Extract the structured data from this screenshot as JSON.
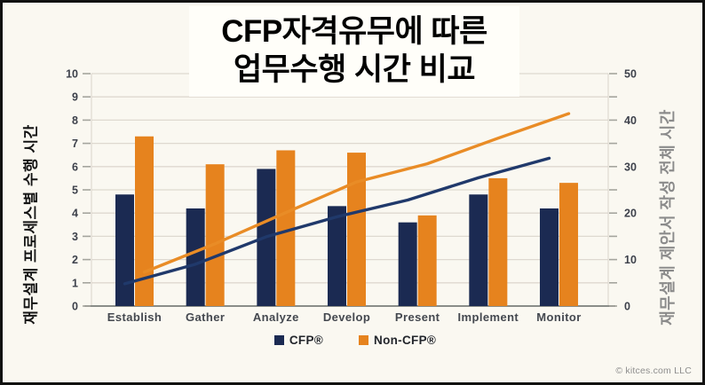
{
  "title": {
    "line1": "CFP자격유무에 따른",
    "line2": "업무수행 시간 비교"
  },
  "legend": {
    "items": [
      {
        "label": "CFP®",
        "color": "#1b2a52"
      },
      {
        "label": "Non-CFP®",
        "color": "#e6831e"
      }
    ]
  },
  "footer": {
    "copyright": "© kitces.com LLC"
  },
  "colors": {
    "cfp_navy": "#1b2a52",
    "non_cfp_orange": "#e6831e",
    "cfp_line_navy": "#20396b",
    "non_cfp_line_orange": "#e98c26",
    "background": "#faf8f1",
    "title_box": "#fffef9",
    "gridline": "#ded9d0",
    "axis_line": "#8a8d89",
    "tick": "#a5a59e",
    "axis_text": "#3d414b",
    "x_label_text": "#44484f",
    "right_axis_title": "#8b8b8b",
    "title_text": "#000000",
    "copyright": "#8e8e8e",
    "frame_border": "#111111"
  },
  "chart_data": {
    "type": "bar+line",
    "title": "CFP자격유무에 따른 업무수행 시간 비교",
    "categories": [
      "Establish",
      "Gather",
      "Analyze",
      "Develop",
      "Present",
      "Implement",
      "Monitor"
    ],
    "left_axis": {
      "title": "재무설계 프로세스별 수행 시간",
      "min": 0,
      "max": 10,
      "tick_labels": [
        0,
        1,
        2,
        3,
        4,
        5,
        6,
        7,
        8,
        9,
        10
      ],
      "applies_to": "bars"
    },
    "right_axis": {
      "title": "재무설계 제안서 작성 전체 시간",
      "min": 0,
      "max": 50,
      "tick_labels": [
        0,
        10,
        20,
        30,
        40,
        50
      ],
      "minor_tick_step": 5,
      "applies_to": "lines"
    },
    "bar_series": [
      {
        "name": "CFP®",
        "color": "#1b2a52",
        "values": [
          4.8,
          4.2,
          5.9,
          4.3,
          3.6,
          4.8,
          4.2
        ]
      },
      {
        "name": "Non-CFP®",
        "color": "#e6831e",
        "values": [
          7.3,
          6.1,
          6.7,
          6.6,
          3.9,
          5.5,
          5.3
        ]
      }
    ],
    "line_series": [
      {
        "name": "CFP® cumulative total",
        "color": "#20396b",
        "values": [
          4.8,
          9.0,
          14.9,
          19.2,
          22.8,
          27.6,
          31.8
        ]
      },
      {
        "name": "Non-CFP® cumulative total",
        "color": "#e98c26",
        "values": [
          7.3,
          13.4,
          20.1,
          26.7,
          30.6,
          36.1,
          41.4
        ]
      }
    ],
    "grid": "horizontal",
    "legend_position": "bottom"
  }
}
